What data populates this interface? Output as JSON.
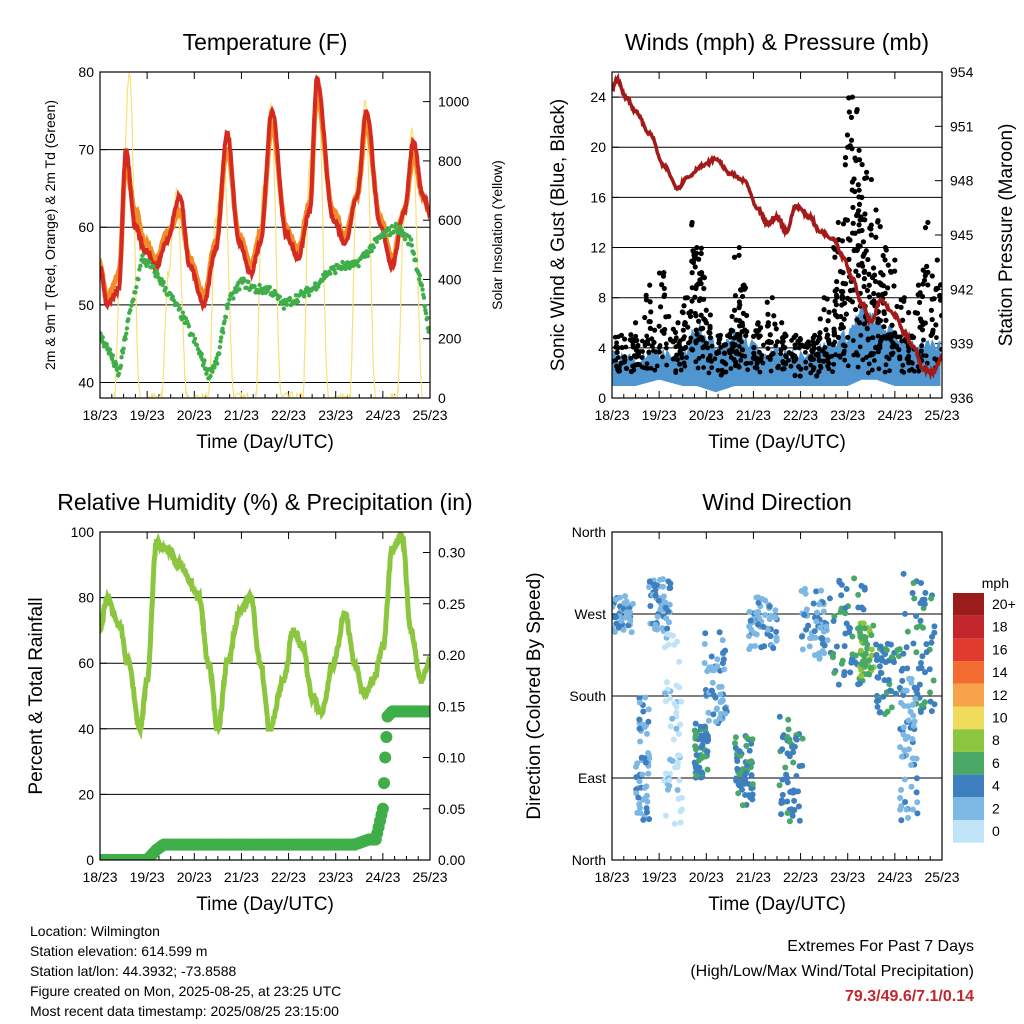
{
  "colors": {
    "t2m": "#d42a20",
    "t9m": "#f28c28",
    "td": "#3fae49",
    "solar": "#f7e17a",
    "wind": "#4f95d0",
    "gust": "#000000",
    "pressure": "#a31a1a",
    "rh": "#8cc63f",
    "precip": "#3fae49",
    "extremes": "#c1272d"
  },
  "chart_data": [
    {
      "id": "temperature",
      "type": "line",
      "title": "Temperature (F)",
      "xlabel": "Time (Day/UTC)",
      "ylabel": "2m & 9m T (Red, Orange) & 2m Td (Green)",
      "ylabel_right": "Solar Insolation (Yellow)",
      "x_ticks": [
        "18/23",
        "19/23",
        "20/23",
        "21/23",
        "22/23",
        "23/23",
        "24/23",
        "25/23"
      ],
      "xlim": [
        0,
        7
      ],
      "ylim": [
        38,
        80
      ],
      "y_ticks": [
        40,
        50,
        60,
        70,
        80
      ],
      "ylim_right": [
        0,
        1100
      ],
      "y_ticks_right": [
        0,
        200,
        400,
        600,
        800,
        1000
      ],
      "grid": "horizontal",
      "series": [
        {
          "key": "t2m",
          "axis": "left",
          "x": [
            0,
            0.15,
            0.4,
            0.55,
            0.75,
            0.95,
            1.2,
            1.4,
            1.7,
            1.9,
            2.2,
            2.45,
            2.7,
            2.95,
            3.2,
            3.4,
            3.65,
            3.95,
            4.2,
            4.45,
            4.6,
            4.95,
            5.2,
            5.45,
            5.65,
            5.95,
            6.2,
            6.45,
            6.65,
            6.85,
            7.0
          ],
          "y": [
            55,
            50,
            52,
            70,
            60,
            57,
            55,
            58,
            64,
            55,
            50,
            57,
            72,
            58,
            54,
            58,
            75,
            59,
            56,
            62,
            79,
            61,
            58,
            64,
            75,
            60,
            55,
            62,
            71,
            64,
            62
          ]
        },
        {
          "key": "t9m",
          "axis": "left",
          "x": [
            0,
            0.15,
            0.4,
            0.55,
            0.75,
            0.95,
            1.2,
            1.4,
            1.7,
            1.9,
            2.2,
            2.45,
            2.7,
            2.95,
            3.2,
            3.4,
            3.65,
            3.95,
            4.2,
            4.45,
            4.6,
            4.95,
            5.2,
            5.45,
            5.65,
            5.95,
            6.2,
            6.45,
            6.65,
            6.85,
            7.0
          ],
          "y": [
            55,
            51,
            54,
            68,
            62,
            58,
            56,
            59,
            62,
            56,
            51,
            58,
            70,
            59,
            55,
            59,
            73,
            60,
            57,
            63,
            77,
            62,
            59,
            64,
            73,
            61,
            56,
            62,
            69,
            64,
            62
          ]
        },
        {
          "key": "td",
          "axis": "left",
          "x": [
            0,
            0.2,
            0.4,
            0.6,
            0.9,
            1.2,
            1.5,
            1.8,
            2.1,
            2.3,
            2.5,
            2.7,
            3.0,
            3.3,
            3.6,
            3.9,
            4.2,
            4.5,
            4.8,
            5.1,
            5.4,
            5.7,
            6.0,
            6.3,
            6.6,
            6.8,
            7.0
          ],
          "y": [
            46,
            44,
            41,
            48,
            56,
            54,
            51,
            48,
            44,
            41,
            43,
            50,
            53,
            52,
            52,
            50,
            51,
            52,
            54,
            55,
            55,
            57,
            59,
            60,
            58,
            53,
            46
          ]
        },
        {
          "key": "solar",
          "axis": "right",
          "x": [
            0.3,
            0.45,
            0.62,
            0.85,
            1.3,
            1.45,
            1.62,
            1.85,
            2.3,
            2.45,
            2.62,
            2.85,
            3.3,
            3.45,
            3.62,
            3.85,
            4.3,
            4.45,
            4.62,
            4.85,
            5.3,
            5.45,
            5.62,
            5.85,
            6.3,
            6.45,
            6.62,
            6.85
          ],
          "y": [
            0,
            500,
            1100,
            0,
            0,
            420,
            700,
            0,
            0,
            600,
            800,
            0,
            0,
            700,
            1000,
            0,
            0,
            800,
            1050,
            0,
            0,
            750,
            1000,
            0,
            0,
            600,
            900,
            0
          ]
        }
      ]
    },
    {
      "id": "winds",
      "type": "line",
      "title": "Winds (mph) & Pressure (mb)",
      "xlabel": "Time (Day/UTC)",
      "ylabel": "Sonic Wind & Gust (Blue, Black)",
      "ylabel_right": "Station Pressure (Maroon)",
      "x_ticks": [
        "18/23",
        "19/23",
        "20/23",
        "21/23",
        "22/23",
        "23/23",
        "24/23",
        "25/23"
      ],
      "xlim": [
        0,
        7
      ],
      "ylim": [
        0,
        26
      ],
      "y_ticks": [
        0,
        4,
        8,
        12,
        16,
        20,
        24
      ],
      "ylim_right": [
        936,
        954
      ],
      "y_ticks_right": [
        936,
        939,
        942,
        945,
        948,
        951,
        954
      ],
      "grid": "horizontal",
      "series": [
        {
          "key": "wind",
          "axis": "left",
          "x": [
            0,
            0.5,
            1.0,
            1.5,
            1.8,
            2.2,
            2.6,
            3.0,
            3.5,
            4.0,
            4.5,
            5.0,
            5.3,
            5.6,
            6.0,
            6.5,
            7.0
          ],
          "y_low": [
            1,
            1,
            1.5,
            1,
            1,
            0.5,
            1,
            1,
            1,
            1,
            1,
            1,
            1.5,
            1.5,
            1,
            1,
            1
          ],
          "y_high": [
            3.5,
            3,
            3.5,
            3,
            6,
            4,
            5,
            4,
            3.5,
            3.5,
            4,
            5,
            7,
            6,
            5,
            4,
            4
          ]
        },
        {
          "key": "gust",
          "axis": "left",
          "type": "scatter",
          "x": [
            0.2,
            0.5,
            0.8,
            1.1,
            1.4,
            1.6,
            1.7,
            1.8,
            1.9,
            2.0,
            2.3,
            2.6,
            2.7,
            2.8,
            3.1,
            3.4,
            3.6,
            3.9,
            4.3,
            4.5,
            4.7,
            4.8,
            4.9,
            5.0,
            5.1,
            5.2,
            5.25,
            5.3,
            5.4,
            5.5,
            5.6,
            5.7,
            5.8,
            6.0,
            6.2,
            6.5,
            6.7,
            6.9
          ],
          "y": [
            5,
            6,
            9,
            10,
            6,
            8,
            14,
            12,
            10,
            7,
            5,
            7,
            12,
            9,
            6,
            8,
            6,
            5,
            5,
            8,
            12,
            14,
            10,
            20,
            24,
            23,
            19,
            16,
            18,
            13,
            15,
            10,
            12,
            11,
            8,
            9,
            14,
            11
          ]
        },
        {
          "key": "pressure",
          "axis": "right",
          "x": [
            0,
            0.1,
            0.3,
            0.5,
            0.8,
            1.1,
            1.4,
            1.6,
            1.9,
            2.2,
            2.5,
            2.8,
            3.1,
            3.3,
            3.5,
            3.7,
            3.9,
            4.2,
            4.4,
            4.7,
            4.9,
            5.1,
            5.3,
            5.5,
            5.7,
            6.0,
            6.2,
            6.4,
            6.6,
            6.8,
            7.0
          ],
          "y": [
            953,
            953.6,
            952.6,
            951.8,
            950.6,
            948.8,
            947.6,
            948.2,
            948.8,
            949.2,
            948.4,
            948.0,
            946.4,
            945.6,
            946.0,
            945.2,
            946.6,
            946.0,
            945.2,
            944.8,
            943.8,
            942.6,
            941.2,
            940.2,
            941.4,
            940.6,
            939.6,
            938.8,
            937.6,
            937.4,
            938.2
          ]
        }
      ]
    },
    {
      "id": "humidity",
      "type": "line",
      "title": "Relative Humidity (%) & Precipitation (in)",
      "xlabel": "Time (Day/UTC)",
      "ylabel": "Percent & Total Rainfall",
      "x_ticks": [
        "18/23",
        "19/23",
        "20/23",
        "21/23",
        "22/23",
        "23/23",
        "24/23",
        "25/23"
      ],
      "xlim": [
        0,
        7
      ],
      "ylim": [
        0,
        100
      ],
      "y_ticks": [
        0,
        20,
        40,
        60,
        80,
        100
      ],
      "ylim_right": [
        0,
        0.32
      ],
      "y_ticks_right": [
        "0.00",
        "0.05",
        "0.10",
        "0.15",
        "0.20",
        "0.25",
        "0.30"
      ],
      "grid": "horizontal",
      "series": [
        {
          "key": "rh",
          "axis": "left",
          "x": [
            0,
            0.15,
            0.4,
            0.6,
            0.85,
            1.0,
            1.2,
            1.4,
            1.7,
            1.9,
            2.1,
            2.3,
            2.5,
            2.7,
            2.95,
            3.2,
            3.4,
            3.6,
            3.9,
            4.1,
            4.3,
            4.5,
            4.7,
            4.95,
            5.2,
            5.4,
            5.6,
            5.8,
            6.0,
            6.2,
            6.4,
            6.6,
            6.8,
            7.0
          ],
          "y": [
            70,
            80,
            72,
            60,
            40,
            55,
            97,
            95,
            90,
            85,
            80,
            60,
            40,
            60,
            75,
            80,
            60,
            40,
            55,
            70,
            65,
            50,
            45,
            60,
            75,
            60,
            50,
            55,
            65,
            95,
            99,
            70,
            55,
            60
          ]
        },
        {
          "key": "precip",
          "axis": "right",
          "x": [
            0,
            1.0,
            1.2,
            1.35,
            5.0,
            5.4,
            5.7,
            5.85,
            6.0,
            6.05,
            6.1,
            6.2,
            7.0
          ],
          "y": [
            0,
            0,
            0.01,
            0.015,
            0.015,
            0.015,
            0.02,
            0.02,
            0.05,
            0.1,
            0.14,
            0.145,
            0.145
          ]
        }
      ]
    },
    {
      "id": "direction",
      "type": "scatter",
      "title": "Wind Direction",
      "xlabel": "Time (Day/UTC)",
      "ylabel": "Direction (Colored By Speed)",
      "x_ticks": [
        "18/23",
        "19/23",
        "20/23",
        "21/23",
        "22/23",
        "23/23",
        "24/23",
        "25/23"
      ],
      "xlim": [
        0,
        7
      ],
      "ylim": [
        0,
        360
      ],
      "y_ticks": [
        0,
        90,
        180,
        270,
        360
      ],
      "y_tick_labels": [
        "North",
        "East",
        "South",
        "West",
        "North"
      ],
      "grid": "horizontal",
      "colorbar": {
        "title": "mph",
        "labels": [
          "20+",
          "18",
          "16",
          "14",
          "12",
          "10",
          "8",
          "6",
          "4",
          "2",
          "0"
        ],
        "colors": [
          "#9c1b1b",
          "#c1272d",
          "#e03b2c",
          "#f26b30",
          "#f6a34a",
          "#f0dc5a",
          "#8cc63f",
          "#4aa866",
          "#3d7fbf",
          "#7db7e4",
          "#bfe3f7"
        ]
      },
      "clusters": [
        {
          "x": 0.15,
          "y": 270,
          "spread_x": 0.3,
          "spread_y": 20,
          "speed": 2
        },
        {
          "x": 0.65,
          "y": 110,
          "spread_x": 0.15,
          "spread_y": 70,
          "speed": 2
        },
        {
          "x": 1.0,
          "y": 280,
          "spread_x": 0.25,
          "spread_y": 30,
          "speed": 2
        },
        {
          "x": 1.3,
          "y": 140,
          "spread_x": 0.2,
          "spread_y": 110,
          "speed": 0
        },
        {
          "x": 1.9,
          "y": 120,
          "spread_x": 0.15,
          "spread_y": 30,
          "speed": 4
        },
        {
          "x": 2.2,
          "y": 200,
          "spread_x": 0.25,
          "spread_y": 50,
          "speed": 2
        },
        {
          "x": 2.8,
          "y": 100,
          "spread_x": 0.2,
          "spread_y": 40,
          "speed": 4
        },
        {
          "x": 3.2,
          "y": 260,
          "spread_x": 0.3,
          "spread_y": 30,
          "speed": 2
        },
        {
          "x": 3.8,
          "y": 100,
          "spread_x": 0.25,
          "spread_y": 60,
          "speed": 4
        },
        {
          "x": 4.3,
          "y": 260,
          "spread_x": 0.3,
          "spread_y": 40,
          "speed": 2
        },
        {
          "x": 5.0,
          "y": 250,
          "spread_x": 0.4,
          "spread_y": 60,
          "speed": 4
        },
        {
          "x": 5.4,
          "y": 230,
          "spread_x": 0.15,
          "spread_y": 30,
          "speed": 6
        },
        {
          "x": 5.9,
          "y": 200,
          "spread_x": 0.3,
          "spread_y": 40,
          "speed": 4
        },
        {
          "x": 6.5,
          "y": 240,
          "spread_x": 0.35,
          "spread_y": 80,
          "speed": 4
        },
        {
          "x": 6.3,
          "y": 120,
          "spread_x": 0.2,
          "spread_y": 80,
          "speed": 2
        }
      ]
    }
  ],
  "info": {
    "location": "Location: Wilmington",
    "elevation": "Station elevation: 614.599 m",
    "latlon": "Station lat/lon: 44.3932; -73.8588",
    "created": "Figure created on Mon, 2025-08-25, at 23:25 UTC",
    "recent": "Most recent data timestamp: 2025/08/25 23:15:00"
  },
  "extremes": {
    "title": "Extremes For Past 7 Days",
    "subtitle": "(High/Low/Max Wind/Total Precipitation)",
    "values": "79.3/49.6/7.1/0.14"
  }
}
